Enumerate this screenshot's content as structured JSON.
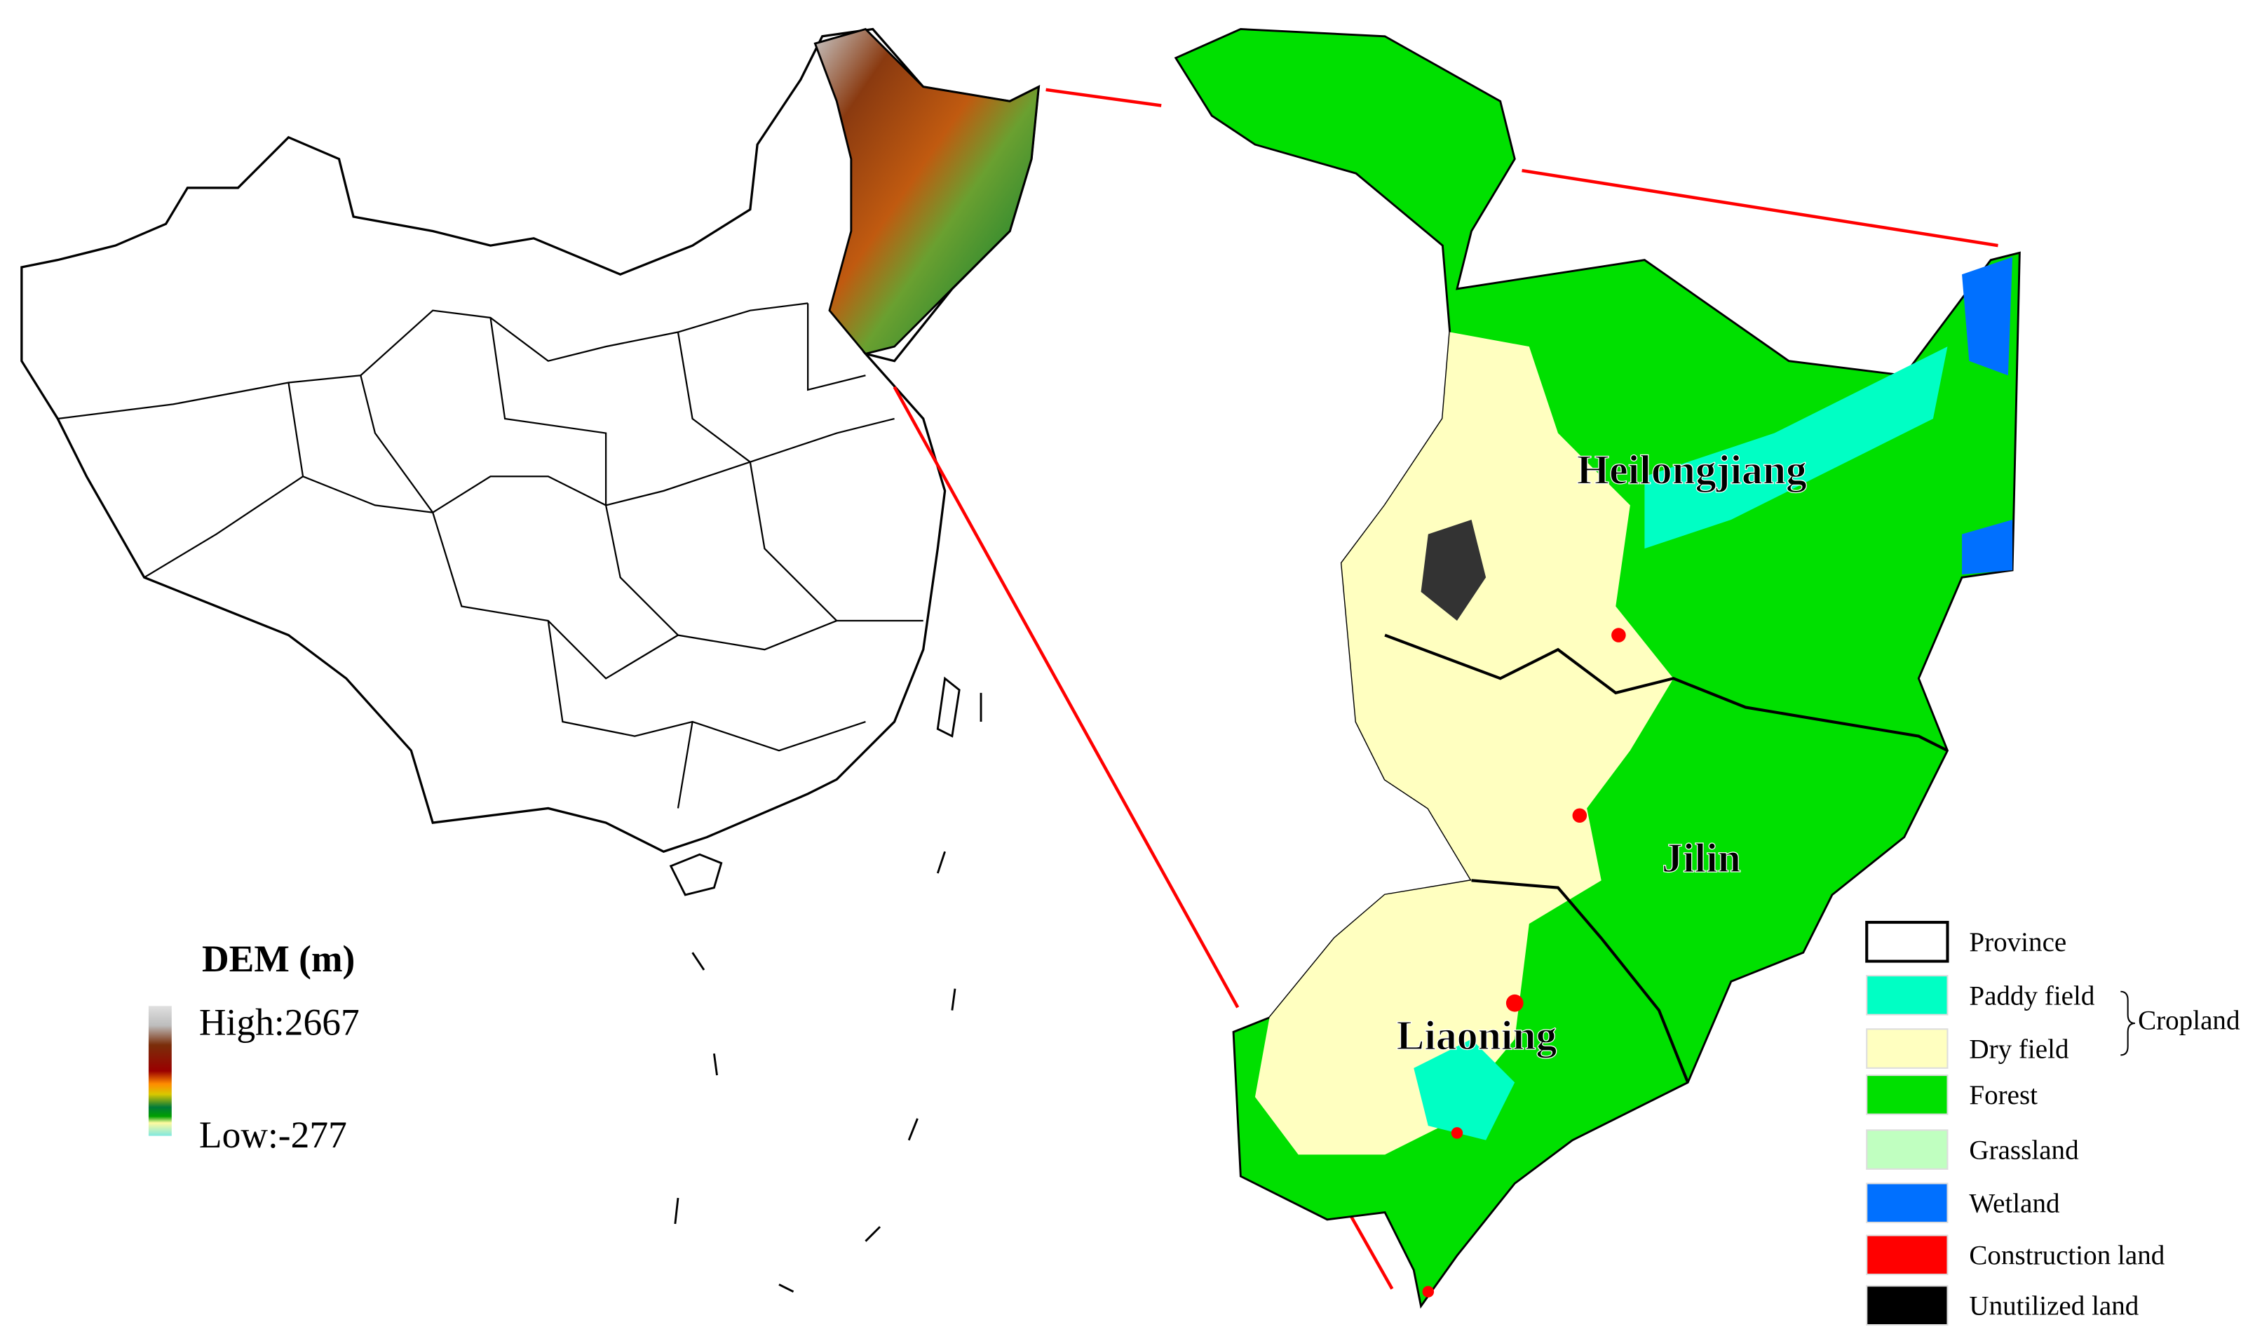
{
  "dem_legend": {
    "title": "DEM (m)",
    "high_label": "High:2667",
    "low_label": "Low:-277",
    "ramp_colors": [
      "#e0e0e0",
      "#7a2e0a",
      "#9a0000",
      "#ff8c00",
      "#d9c800",
      "#007a3a",
      "#00a000",
      "#fffaa0",
      "#7fe8e0"
    ]
  },
  "province_labels": {
    "heilongjiang": "Heilongjiang",
    "jilin": "Jilin",
    "liaoning": "Liaoning"
  },
  "landuse_legend": {
    "items": [
      {
        "label": "Province",
        "color": "#ffffff"
      },
      {
        "label": "Paddy field",
        "color": "#00ffc4"
      },
      {
        "label": "Dry field",
        "color": "#ffffc0"
      },
      {
        "label": "Forest",
        "color": "#00e000"
      },
      {
        "label": "Grassland",
        "color": "#c0ffc0"
      },
      {
        "label": "Wetland",
        "color": "#0070ff"
      },
      {
        "label": "Construction land",
        "color": "#ff0000"
      },
      {
        "label": "Unutilized land",
        "color": "#000000"
      }
    ],
    "group_label": "Cropland"
  },
  "colors": {
    "zoom_lines": "#ff0000",
    "boundary": "#000000"
  }
}
